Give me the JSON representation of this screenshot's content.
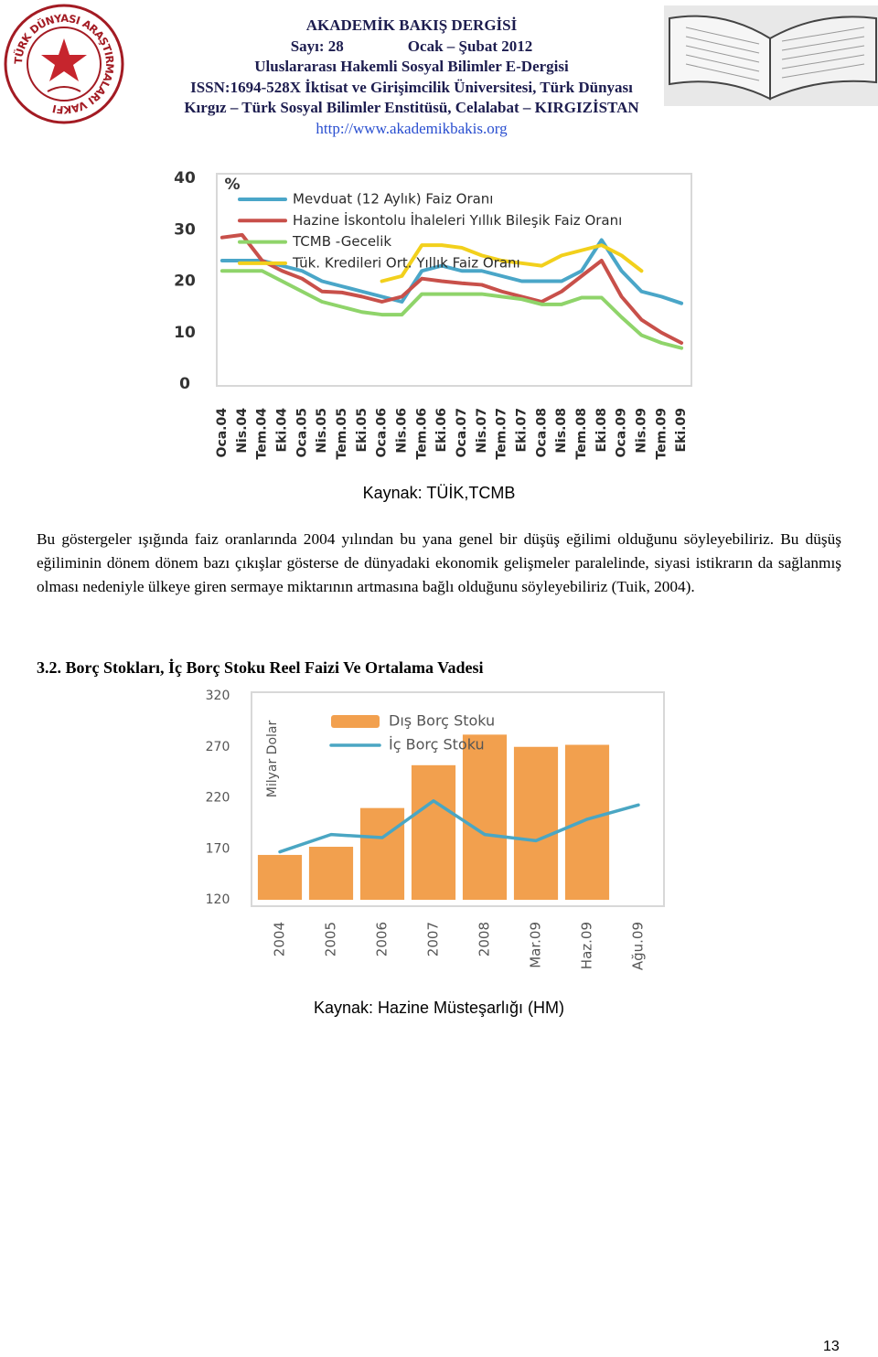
{
  "header": {
    "journal": "AKADEMİK BAKIŞ DERGİSİ",
    "issue": "Sayı: 28",
    "date": "Ocak – Şubat 2012",
    "subtitle": "Uluslararası Hakemli Sosyal Bilimler E-Dergisi",
    "publisher_1": "ISSN:1694-528X İktisat ve Girişimcilik Üniversitesi, Türk Dünyası",
    "publisher_2": "Kırgız – Türk Sosyal Bilimler Enstitüsü, Celalabat – KIRGIZİSTAN",
    "url": "http://www.akademikbakis.org",
    "logo_text": "TÜRK DÜNYASI ARAŞTIRMALARI VAKFI"
  },
  "chart_data": [
    {
      "type": "line",
      "y_unit": "%",
      "categories": [
        "Oca.04",
        "Nis.04",
        "Tem.04",
        "Eki.04",
        "Oca.05",
        "Nis.05",
        "Tem.05",
        "Eki.05",
        "Oca.06",
        "Nis.06",
        "Tem.06",
        "Eki.06",
        "Oca.07",
        "Nis.07",
        "Tem.07",
        "Eki.07",
        "Oca.08",
        "Nis.08",
        "Tem.08",
        "Eki.08",
        "Oca.09",
        "Nis.09",
        "Tem.09",
        "Eki.09"
      ],
      "ylim": [
        0,
        40
      ],
      "yticks": [
        0,
        10,
        20,
        30,
        40
      ],
      "series": [
        {
          "name": "Mevduat (12 Aylık) Faiz Oranı",
          "color": "#4aa6c8",
          "values": [
            24,
            24,
            24,
            23,
            22,
            20,
            19,
            18,
            17,
            16,
            22,
            23,
            22,
            22,
            21,
            20,
            20,
            20,
            22,
            28,
            22,
            18,
            17,
            15.7
          ]
        },
        {
          "name": "Hazine İskontolu İhaleleri Yıllık Bileşik Faiz Oranı",
          "color": "#c8504a",
          "values": [
            28.5,
            29,
            24,
            22,
            20.5,
            18,
            17.8,
            17,
            16,
            17,
            20.5,
            20,
            19.6,
            19.3,
            18,
            17,
            16,
            18,
            21,
            24,
            17,
            12.5,
            10,
            8
          ]
        },
        {
          "name": "TCMB -Gecelik",
          "color": "#8fd46a",
          "values": [
            22,
            22,
            22,
            20,
            18,
            16,
            15,
            14,
            13.5,
            13.5,
            17.5,
            17.5,
            17.5,
            17.5,
            17,
            16.5,
            15.5,
            15.5,
            16.8,
            16.8,
            13,
            9.5,
            8,
            7
          ]
        },
        {
          "name": "Tük. Kredileri Ort. Yıllık Faiz Oranı",
          "color": "#f2d01c",
          "values": [
            null,
            null,
            null,
            null,
            null,
            null,
            null,
            null,
            20,
            21,
            27,
            27,
            26.5,
            25,
            24,
            23.5,
            23,
            25,
            26,
            27,
            25,
            22,
            null,
            null
          ]
        }
      ]
    },
    {
      "type": "bar",
      "y_label": "Milyar Dolar",
      "categories": [
        "2004",
        "2005",
        "2006",
        "2007",
        "2008",
        "Mar.09",
        "Haz.09",
        "Ağu.09"
      ],
      "ylim": [
        120,
        320
      ],
      "yticks": [
        120,
        170,
        220,
        270,
        320
      ],
      "series": [
        {
          "name": "Dış Borç Stoku",
          "color": "#f2a04e",
          "type": "bar",
          "values": [
            164,
            172,
            210,
            252,
            282,
            270,
            272,
            null
          ]
        },
        {
          "name": "İç Borç Stoku",
          "color": "#4aa6c3",
          "type": "line",
          "values": [
            167,
            184,
            181,
            217,
            184,
            178,
            199,
            213
          ]
        }
      ]
    }
  ],
  "captions": [
    "Kaynak: TÜİK,TCMB",
    "Kaynak: Hazine Müsteşarlığı (HM)"
  ],
  "paragraph": "Bu göstergeler ışığında faiz oranlarında 2004 yılından bu yana genel bir düşüş eğilimi olduğunu söyleyebiliriz. Bu düşüş eğiliminin dönem dönem bazı çıkışlar gösterse de dünyadaki ekonomik gelişmeler paralelinde, siyasi istikrarın da sağlanmış olması nedeniyle ülkeye giren sermaye miktarının artmasına bağlı olduğunu söyleyebiliriz (Tuik, 2004).",
  "section_heading": "3.2. Borç Stokları, İç Borç Stoku Reel Faizi Ve Ortalama Vadesi",
  "page_number": 13
}
